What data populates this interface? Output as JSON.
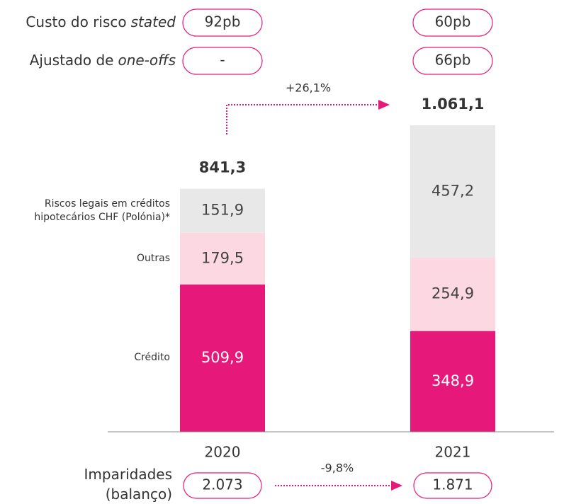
{
  "chart_data": {
    "type": "bar",
    "stacked": true,
    "categories": [
      "2020",
      "2021"
    ],
    "series": [
      {
        "name": "Crédito",
        "color": "#e6197a",
        "label_color": "#ffffff",
        "values": [
          509.9,
          348.9
        ],
        "value_labels": [
          "509,9",
          "348,9"
        ]
      },
      {
        "name": "Outras",
        "color": "#fcd9e2",
        "label_color": "#444444",
        "values": [
          179.5,
          254.9
        ],
        "value_labels": [
          "179,5",
          "254,9"
        ]
      },
      {
        "name": "Riscos legais em créditos hipotecários CHF (Polónia)*",
        "color": "#e8e8e8",
        "label_color": "#444444",
        "values": [
          151.9,
          457.2
        ],
        "value_labels": [
          "151,9",
          "457,2"
        ]
      }
    ],
    "totals": [
      841.3,
      1061.1
    ],
    "total_labels": [
      "841,3",
      "1.061,1"
    ],
    "growth_label": "+26,1%",
    "accent": "#e6197a",
    "rows": [
      {
        "label": "Custo do risco",
        "emphasis": "stated",
        "values": [
          "92pb",
          "60pb"
        ]
      },
      {
        "label": "Ajustado de",
        "emphasis": "one-offs",
        "values": [
          "-",
          "66pb"
        ]
      }
    ],
    "impairments": {
      "label": "Imparidades (balanço)",
      "values": [
        "2.073",
        "1.871"
      ],
      "change": "-9,8%"
    }
  }
}
